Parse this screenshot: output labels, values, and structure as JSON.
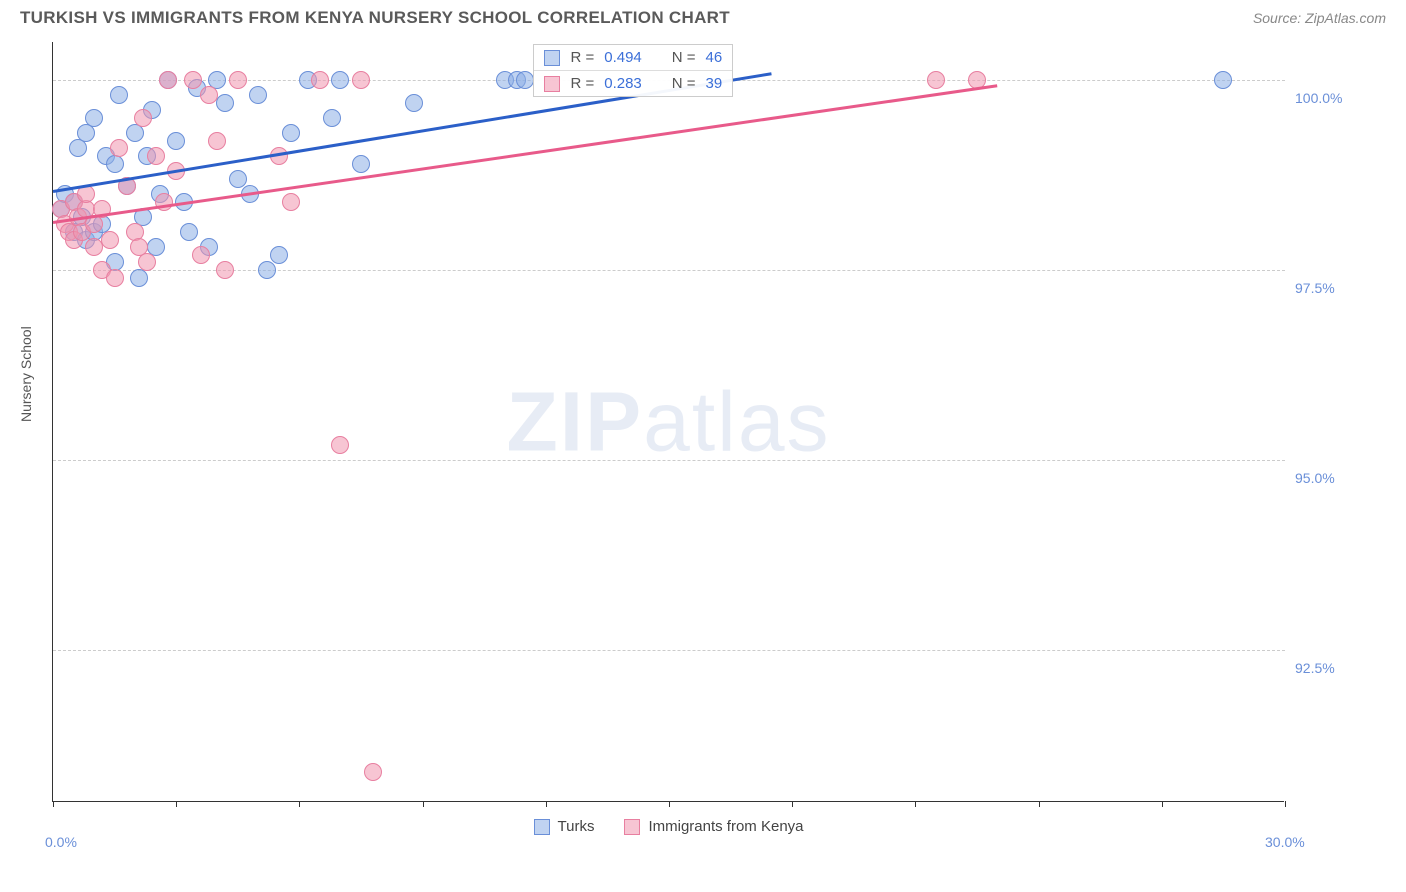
{
  "header": {
    "title": "TURKISH VS IMMIGRANTS FROM KENYA NURSERY SCHOOL CORRELATION CHART",
    "source": "Source: ZipAtlas.com"
  },
  "chart": {
    "type": "scatter",
    "y_axis_label": "Nursery School",
    "watermark_zip": "ZIP",
    "watermark_atlas": "atlas",
    "xlim": [
      0,
      30
    ],
    "ylim": [
      90.5,
      100.5
    ],
    "x_ticks": [
      0,
      3,
      6,
      9,
      12,
      15,
      18,
      21,
      24,
      27,
      30
    ],
    "x_tick_labels": {
      "0": "0.0%",
      "30": "30.0%"
    },
    "y_ticks": [
      92.5,
      95.0,
      97.5,
      100.0
    ],
    "y_tick_labels": [
      "92.5%",
      "95.0%",
      "97.5%",
      "100.0%"
    ],
    "grid_color": "#cccccc",
    "background_color": "#ffffff",
    "series": [
      {
        "name": "Turks",
        "label": "Turks",
        "fill_color": "rgba(140, 175, 230, 0.55)",
        "stroke_color": "#6a8fd8",
        "line_color": "#2b5fc8",
        "R": "0.494",
        "N": "46",
        "points": [
          [
            0.2,
            98.3
          ],
          [
            0.3,
            98.5
          ],
          [
            0.5,
            98.0
          ],
          [
            0.5,
            98.4
          ],
          [
            0.6,
            99.1
          ],
          [
            0.7,
            98.2
          ],
          [
            0.8,
            99.3
          ],
          [
            0.8,
            97.9
          ],
          [
            1.0,
            98.0
          ],
          [
            1.0,
            99.5
          ],
          [
            1.2,
            98.1
          ],
          [
            1.3,
            99.0
          ],
          [
            1.5,
            98.9
          ],
          [
            1.5,
            97.6
          ],
          [
            1.6,
            99.8
          ],
          [
            1.8,
            98.6
          ],
          [
            2.0,
            99.3
          ],
          [
            2.1,
            97.4
          ],
          [
            2.2,
            98.2
          ],
          [
            2.4,
            99.6
          ],
          [
            2.5,
            97.8
          ],
          [
            2.6,
            98.5
          ],
          [
            2.8,
            100.0
          ],
          [
            3.0,
            99.2
          ],
          [
            3.2,
            98.4
          ],
          [
            3.5,
            99.9
          ],
          [
            3.8,
            97.8
          ],
          [
            4.0,
            100.0
          ],
          [
            4.2,
            99.7
          ],
          [
            4.5,
            98.7
          ],
          [
            4.8,
            98.5
          ],
          [
            5.0,
            99.8
          ],
          [
            5.2,
            97.5
          ],
          [
            5.5,
            97.7
          ],
          [
            5.8,
            99.3
          ],
          [
            6.2,
            100.0
          ],
          [
            6.8,
            99.5
          ],
          [
            7.0,
            100.0
          ],
          [
            7.5,
            98.9
          ],
          [
            8.8,
            99.7
          ],
          [
            11.0,
            100.0
          ],
          [
            11.3,
            100.0
          ],
          [
            11.5,
            100.0
          ],
          [
            28.5,
            100.0
          ],
          [
            2.3,
            99.0
          ],
          [
            3.3,
            98.0
          ]
        ],
        "trend": {
          "x1": 0,
          "y1": 98.55,
          "x2": 17.5,
          "y2": 100.1
        }
      },
      {
        "name": "Immigrants from Kenya",
        "label": "Immigrants from Kenya",
        "fill_color": "rgba(240, 150, 175, 0.55)",
        "stroke_color": "#e87fa0",
        "line_color": "#e85a8a",
        "R": "0.283",
        "N": "39",
        "points": [
          [
            0.2,
            98.3
          ],
          [
            0.3,
            98.1
          ],
          [
            0.4,
            98.0
          ],
          [
            0.5,
            97.9
          ],
          [
            0.5,
            98.4
          ],
          [
            0.6,
            98.2
          ],
          [
            0.7,
            98.0
          ],
          [
            0.8,
            98.3
          ],
          [
            0.8,
            98.5
          ],
          [
            1.0,
            98.1
          ],
          [
            1.2,
            97.5
          ],
          [
            1.2,
            98.3
          ],
          [
            1.4,
            97.9
          ],
          [
            1.5,
            97.4
          ],
          [
            1.6,
            99.1
          ],
          [
            1.8,
            98.6
          ],
          [
            2.0,
            98.0
          ],
          [
            2.2,
            99.5
          ],
          [
            2.3,
            97.6
          ],
          [
            2.5,
            99.0
          ],
          [
            2.7,
            98.4
          ],
          [
            2.8,
            100.0
          ],
          [
            3.0,
            98.8
          ],
          [
            3.4,
            100.0
          ],
          [
            3.6,
            97.7
          ],
          [
            3.8,
            99.8
          ],
          [
            4.0,
            99.2
          ],
          [
            4.2,
            97.5
          ],
          [
            4.5,
            100.0
          ],
          [
            5.5,
            99.0
          ],
          [
            5.8,
            98.4
          ],
          [
            6.5,
            100.0
          ],
          [
            7.0,
            95.2
          ],
          [
            7.5,
            100.0
          ],
          [
            7.8,
            90.9
          ],
          [
            21.5,
            100.0
          ],
          [
            22.5,
            100.0
          ],
          [
            1.0,
            97.8
          ],
          [
            2.1,
            97.8
          ]
        ],
        "trend": {
          "x1": 0,
          "y1": 98.15,
          "x2": 23,
          "y2": 99.95
        }
      }
    ],
    "legend_corr": {
      "r_label": "R =",
      "n_label": "N ="
    },
    "legend_bottom": {
      "items": [
        "Turks",
        "Immigrants from Kenya"
      ]
    }
  }
}
